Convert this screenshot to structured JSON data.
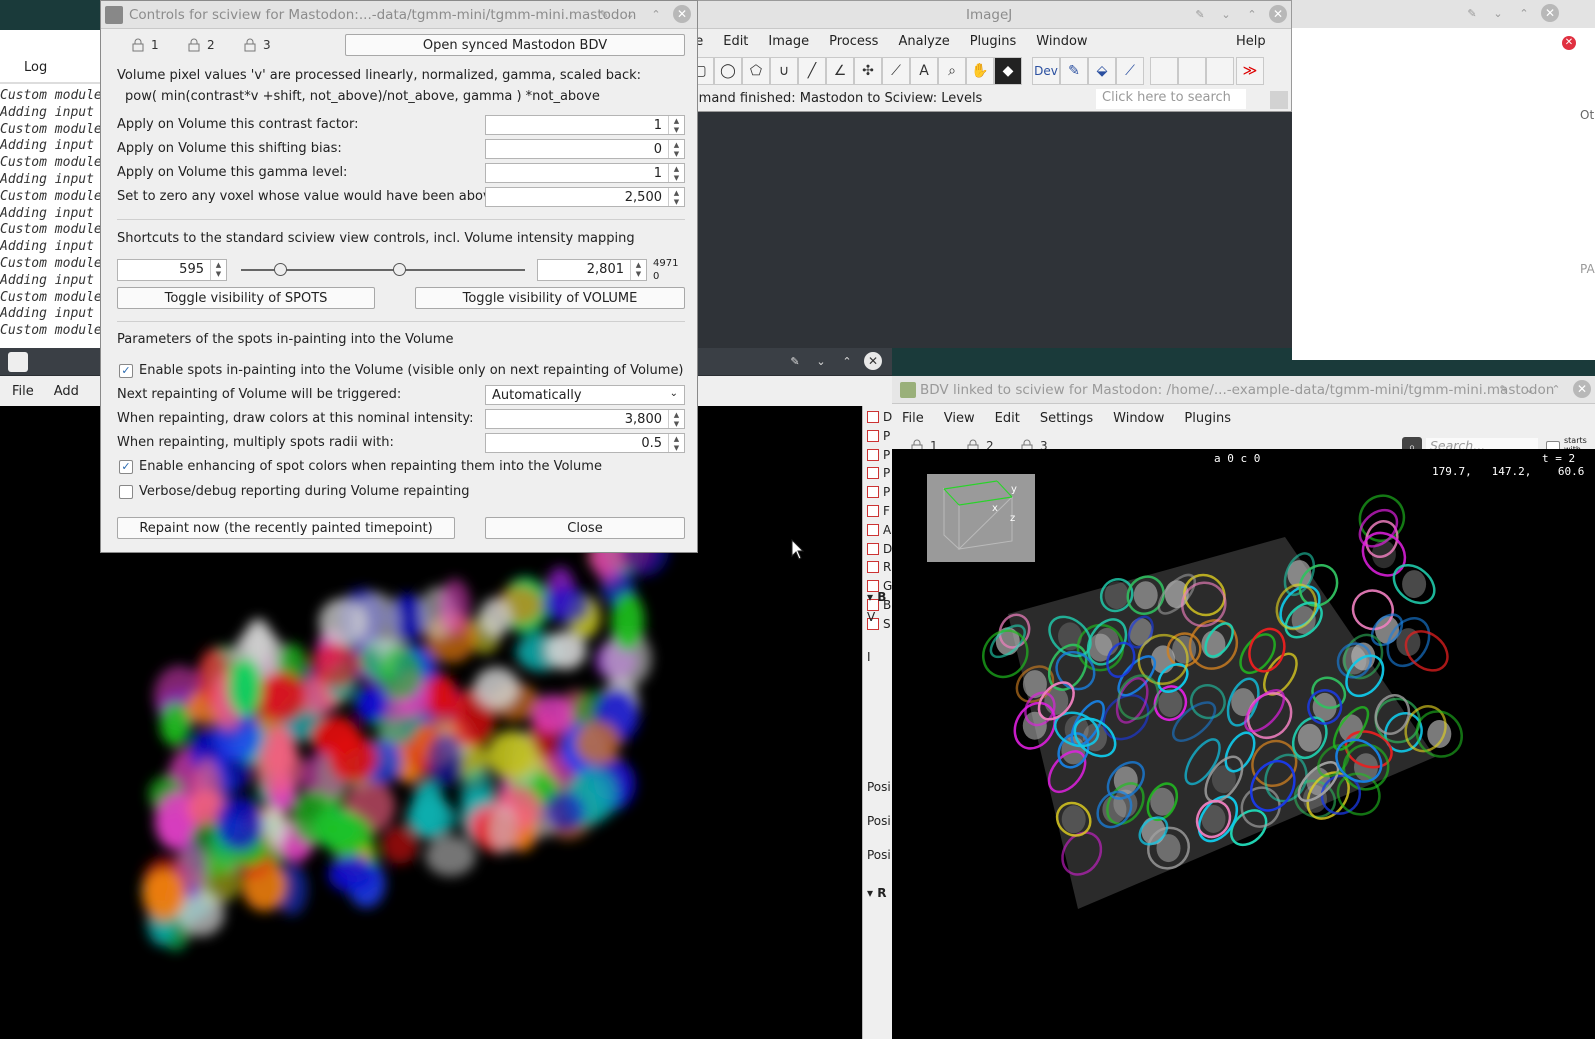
{
  "log": {
    "tab": "Log",
    "lines": [
      "Custom module",
      "Adding input",
      "Custom module",
      "Adding input",
      "Custom module",
      "Adding input",
      "Custom module",
      "Adding input",
      "Custom module",
      "Adding input",
      "Custom module",
      "Adding input",
      "Custom module",
      "Adding input",
      "Custom module"
    ]
  },
  "imagej": {
    "title": "ImageJ",
    "menu": [
      "ile",
      "Edit",
      "Image",
      "Process",
      "Analyze",
      "Plugins",
      "Window",
      "Help"
    ],
    "status": "mmand finished: Mastodon to Sciview: Levels",
    "search_placeholder": "Click here to search",
    "dev_label": "Dev",
    "more_tools": "≫"
  },
  "controls": {
    "title": "Controls for sciview for Mastodon:...-data/tgmm-mini/tgmm-mini.mastodon",
    "locks": [
      "1",
      "2",
      "3"
    ],
    "open_bdv": "Open synced Mastodon BDV",
    "formula_line1": "Volume pixel values 'v' are processed linearly, normalized, gamma, scaled back:",
    "formula_line2": "pow( min(contrast*v +shift, not_above)/not_above, gamma ) *not_above",
    "contrast_label": "Apply on Volume this contrast factor:",
    "contrast_value": "1",
    "shift_label": "Apply on Volume this shifting bias:",
    "shift_value": "0",
    "gamma_label": "Apply on Volume this gamma level:",
    "gamma_value": "1",
    "above_label": "Set to zero any voxel whose value would have been above:",
    "above_value": "2,500",
    "shortcuts_label": "Shortcuts to the standard sciview view controls, incl. Volume intensity mapping",
    "range_min": "595",
    "range_max": "2,801",
    "range_limit_max": "4971",
    "range_limit_min": "0",
    "slider_low": 0.12,
    "slider_high": 0.56,
    "toggle_spots": "Toggle visibility of SPOTS",
    "toggle_volume": "Toggle visibility of VOLUME",
    "inpaint_header": "Parameters of the spots in-painting into the Volume",
    "enable_inpaint": "Enable spots in-painting into the Volume (visible only on next repainting of Volume)",
    "trigger_label": "Next repainting of Volume will be triggered:",
    "trigger_value": "Automatically",
    "intensity_label": "When repainting, draw colors at this nominal intensity:",
    "intensity_value": "3,800",
    "radii_label": "When repainting, multiply spots radii with:",
    "radii_value": "0.5",
    "enhance_label": "Enable enhancing of spot colors when repainting them into the Volume",
    "verbose_label": "Verbose/debug reporting during Volume repainting",
    "repaint_button": "Repaint now (the recently painted timepoint)",
    "close_button": "Close"
  },
  "sciview": {
    "menu": [
      "File",
      "Add",
      "E"
    ],
    "side_items": [
      "D",
      "P",
      "P",
      "P",
      "P",
      "F",
      "A",
      "D",
      "R",
      "G",
      "B",
      "S"
    ],
    "panel_labels": [
      "B",
      "V",
      "I",
      "Posi",
      "Posi",
      "Posi",
      "R"
    ]
  },
  "bdv": {
    "title": "BDV linked to sciview for Mastodon: /home/...-example-data/tgmm-mini/tgmm-mini.mastodon",
    "menu": [
      "File",
      "View",
      "Edit",
      "Settings",
      "Window",
      "Plugins"
    ],
    "locks": [
      "1",
      "2",
      "3"
    ],
    "search_placeholder": "Search...",
    "starts_with": "starts with",
    "source_label": "a 0 c 0",
    "time_label": "t = 2",
    "coords": "179.7,   147.2,    60.6",
    "axis_y": "y",
    "axis_x": "x",
    "axis_z": "z"
  },
  "right_edge": {
    "oth": "Oth",
    "pa": "PA"
  }
}
